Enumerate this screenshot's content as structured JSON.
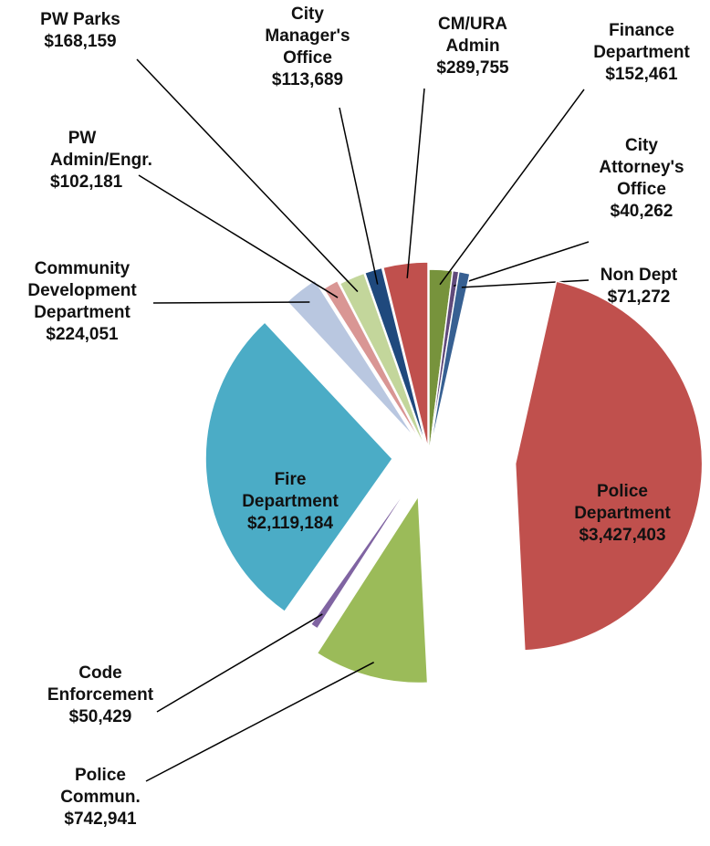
{
  "chart_data": {
    "type": "pie",
    "categories": [
      "Finance Department",
      "City Attorney's Office",
      "Non Dept",
      "Police Department",
      "Police Commun.",
      "Code Enforcement",
      "Fire Department",
      "Community Development Department",
      "PW Admin/Engr.",
      "PW Parks",
      "City Manager's Office",
      "CM/URA Admin"
    ],
    "values": [
      152461,
      40262,
      71272,
      3427403,
      742941,
      50429,
      2119184,
      224051,
      102181,
      168159,
      113689,
      289755
    ],
    "value_labels": [
      "$152,461",
      "$40,262",
      "$71,272",
      "$3,427,403",
      "$742,941",
      "$50,429",
      "$2,119,184",
      "$224,051",
      "$102,181",
      "$168,159",
      "$113,689",
      "$289,755"
    ],
    "colors": [
      "#77933c",
      "#604a7b",
      "#376092",
      "#c0504d",
      "#9bbb59",
      "#8064a2",
      "#4bacc6",
      "#b9c7e0",
      "#d99694",
      "#c3d69b",
      "#1f497d",
      "#c0504d"
    ]
  }
}
